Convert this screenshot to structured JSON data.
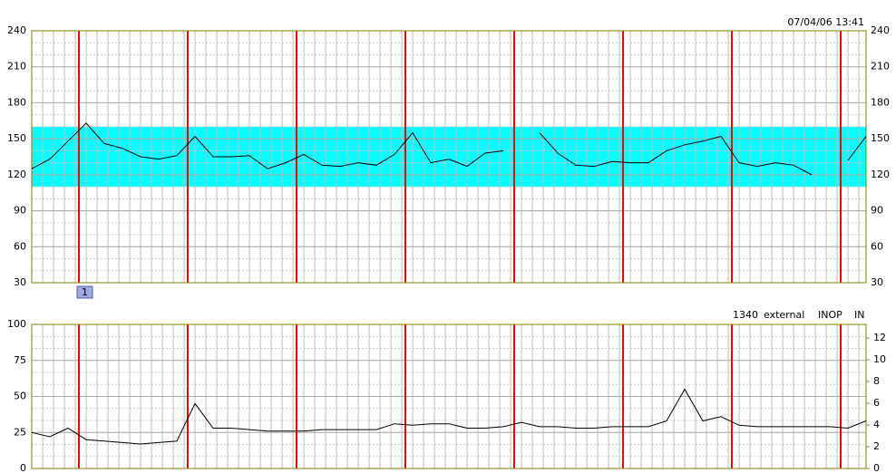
{
  "chart_data": [
    {
      "type": "line",
      "timestamp": "07/04/06 13:41",
      "marker": "1",
      "ylim": [
        30,
        240
      ],
      "yticks": [
        30,
        60,
        90,
        120,
        150,
        180,
        210,
        240
      ],
      "band": [
        110,
        160
      ],
      "band_color": "#00ffff",
      "grid": true,
      "series": [
        {
          "color": "#000000",
          "values": [
            125,
            133,
            148,
            163,
            146,
            142,
            135,
            133,
            136,
            152,
            135,
            135,
            136,
            125,
            130,
            137,
            128,
            127,
            130,
            128,
            137,
            155,
            130,
            133,
            127,
            138,
            140,
            null,
            155,
            138,
            128,
            127,
            131,
            130,
            130,
            140,
            145,
            148,
            152,
            130,
            127,
            130,
            128,
            120,
            null,
            132,
            152
          ]
        }
      ]
    },
    {
      "type": "line",
      "status": [
        "1340",
        "external",
        "INOP",
        "IN"
      ],
      "ylim": [
        0,
        100
      ],
      "yticks": [
        0,
        25,
        50,
        75,
        100
      ],
      "y2lim": [
        0,
        13.25
      ],
      "y2ticks": [
        0,
        2,
        4,
        6,
        8,
        10,
        12
      ],
      "grid": true,
      "series": [
        {
          "color": "#000000",
          "values": [
            25,
            22,
            28,
            20,
            19,
            18,
            17,
            18,
            19,
            45,
            28,
            28,
            27,
            26,
            26,
            26,
            27,
            27,
            27,
            27,
            31,
            30,
            31,
            31,
            28,
            28,
            29,
            32,
            29,
            29,
            28,
            28,
            29,
            29,
            29,
            33,
            55,
            33,
            36,
            30,
            29,
            29,
            29,
            29,
            29,
            28,
            33
          ]
        }
      ]
    }
  ]
}
